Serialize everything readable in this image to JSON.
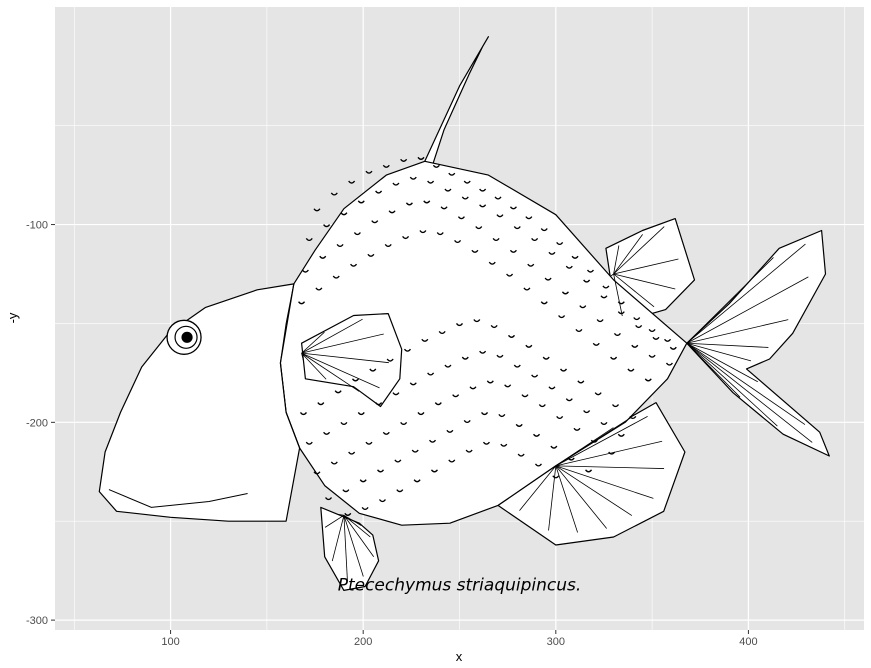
{
  "chart_data": {
    "type": "scatter",
    "title": "",
    "xlabel": "x",
    "ylabel": "-y",
    "xlim": [
      40,
      460
    ],
    "ylim": [
      -305,
      10
    ],
    "x_ticks": [
      100,
      200,
      300,
      400
    ],
    "y_ticks": [
      -100,
      -200,
      -300
    ],
    "x_tick_labels": [
      "100",
      "200",
      "300",
      "400"
    ],
    "y_tick_labels": [
      "-100",
      "-200",
      "-300"
    ],
    "grid": true,
    "panel_background": "#e5e5e5",
    "gridline_color": "#ffffff",
    "stroke_color": "#000000",
    "annotation": {
      "text": "Ptecechymus striaquipincus.",
      "x": 250,
      "y": -285
    },
    "series": [
      {
        "role": "body-outline",
        "x": [
          164,
          175,
          190,
          212,
          232,
          265,
          300,
          330,
          368,
          358,
          336,
          300,
          270,
          245,
          220,
          198,
          180,
          167,
          160,
          157,
          159,
          164
        ],
        "y": [
          -130,
          -113,
          -92,
          -75,
          -68,
          -75,
          -95,
          -128,
          -160,
          -178,
          -200,
          -222,
          -242,
          -251,
          -252,
          -246,
          -232,
          -213,
          -195,
          -170,
          -150,
          -130
        ]
      },
      {
        "role": "head-outline",
        "x": [
          164,
          145,
          118,
          99,
          85,
          74,
          66,
          63,
          72,
          100,
          130,
          160,
          167,
          160,
          157,
          164
        ],
        "y": [
          -130,
          -133,
          -142,
          -155,
          -172,
          -195,
          -215,
          -235,
          -245,
          -248,
          -250,
          -250,
          -213,
          -195,
          -170,
          -130
        ]
      },
      {
        "role": "dorsal-fin",
        "x": [
          236,
          242,
          255,
          262,
          265,
          250,
          232,
          236
        ],
        "y": [
          -70,
          -52,
          -24,
          -10,
          -5,
          -30,
          -68,
          -70
        ]
      },
      {
        "role": "upper-rear-fin",
        "x": [
          326,
          345,
          362,
          372,
          357,
          332,
          326
        ],
        "y": [
          -112,
          -103,
          -97,
          -128,
          -143,
          -150,
          -112
        ]
      },
      {
        "role": "caudal-fin",
        "x": [
          368,
          390,
          416,
          438,
          440,
          423,
          411,
          399,
          437,
          442,
          418,
          392,
          368
        ],
        "y": [
          -160,
          -140,
          -112,
          -103,
          -125,
          -155,
          -168,
          -173,
          -205,
          -217,
          -206,
          -185,
          -160
        ]
      },
      {
        "role": "ventral-fin",
        "x": [
          178,
          180,
          190,
          201,
          208,
          205,
          198,
          178
        ],
        "y": [
          -243,
          -268,
          -285,
          -283,
          -270,
          -257,
          -251,
          -243
        ]
      },
      {
        "role": "anal-fin",
        "x": [
          270,
          300,
          330,
          356,
          367,
          352,
          334,
          300,
          270
        ],
        "y": [
          -242,
          -262,
          -258,
          -245,
          -215,
          -190,
          -200,
          -222,
          -242
        ]
      },
      {
        "role": "pectoral-fin",
        "x": [
          168,
          195,
          213,
          220,
          219,
          209,
          195,
          170,
          168
        ],
        "y": [
          -160,
          -146,
          -145,
          -163,
          -178,
          -192,
          -182,
          -178,
          -160
        ]
      },
      {
        "role": "eye",
        "x": [
          107
        ],
        "y": [
          -157
        ]
      }
    ],
    "scale_marks": [
      [
        176,
        -92
      ],
      [
        185,
        -84
      ],
      [
        194,
        -78
      ],
      [
        203,
        -73
      ],
      [
        212,
        -70
      ],
      [
        221,
        -67
      ],
      [
        230,
        -66
      ],
      [
        238,
        -70
      ],
      [
        246,
        -74
      ],
      [
        254,
        -78
      ],
      [
        262,
        -82
      ],
      [
        270,
        -86
      ],
      [
        278,
        -91
      ],
      [
        286,
        -96
      ],
      [
        294,
        -102
      ],
      [
        302,
        -109
      ],
      [
        310,
        -116
      ],
      [
        318,
        -123
      ],
      [
        326,
        -131
      ],
      [
        334,
        -139
      ],
      [
        342,
        -147
      ],
      [
        350,
        -153
      ],
      [
        358,
        -158
      ],
      [
        172,
        -107
      ],
      [
        181,
        -100
      ],
      [
        190,
        -94
      ],
      [
        199,
        -88
      ],
      [
        208,
        -83
      ],
      [
        217,
        -79
      ],
      [
        226,
        -76
      ],
      [
        235,
        -78
      ],
      [
        244,
        -82
      ],
      [
        253,
        -86
      ],
      [
        262,
        -90
      ],
      [
        271,
        -95
      ],
      [
        280,
        -101
      ],
      [
        289,
        -107
      ],
      [
        298,
        -114
      ],
      [
        307,
        -121
      ],
      [
        316,
        -128
      ],
      [
        325,
        -136
      ],
      [
        334,
        -144
      ],
      [
        343,
        -151
      ],
      [
        352,
        -157
      ],
      [
        361,
        -162
      ],
      [
        170,
        -123
      ],
      [
        179,
        -116
      ],
      [
        188,
        -110
      ],
      [
        197,
        -104
      ],
      [
        206,
        -98
      ],
      [
        215,
        -93
      ],
      [
        224,
        -89
      ],
      [
        233,
        -88
      ],
      [
        242,
        -91
      ],
      [
        251,
        -96
      ],
      [
        260,
        -101
      ],
      [
        269,
        -107
      ],
      [
        278,
        -113
      ],
      [
        287,
        -120
      ],
      [
        296,
        -127
      ],
      [
        305,
        -134
      ],
      [
        314,
        -141
      ],
      [
        323,
        -148
      ],
      [
        332,
        -155
      ],
      [
        341,
        -161
      ],
      [
        350,
        -166
      ],
      [
        359,
        -170
      ],
      [
        168,
        -139
      ],
      [
        177,
        -132
      ],
      [
        186,
        -126
      ],
      [
        195,
        -120
      ],
      [
        204,
        -115
      ],
      [
        213,
        -110
      ],
      [
        222,
        -106
      ],
      [
        231,
        -103
      ],
      [
        240,
        -104
      ],
      [
        249,
        -108
      ],
      [
        258,
        -113
      ],
      [
        267,
        -119
      ],
      [
        276,
        -125
      ],
      [
        285,
        -132
      ],
      [
        294,
        -139
      ],
      [
        303,
        -146
      ],
      [
        312,
        -153
      ],
      [
        321,
        -160
      ],
      [
        330,
        -167
      ],
      [
        339,
        -173
      ],
      [
        348,
        -178
      ],
      [
        169,
        -195
      ],
      [
        178,
        -190
      ],
      [
        187,
        -184
      ],
      [
        196,
        -178
      ],
      [
        205,
        -173
      ],
      [
        214,
        -168
      ],
      [
        223,
        -163
      ],
      [
        232,
        -158
      ],
      [
        241,
        -154
      ],
      [
        250,
        -150
      ],
      [
        259,
        -148
      ],
      [
        268,
        -151
      ],
      [
        277,
        -156
      ],
      [
        286,
        -161
      ],
      [
        295,
        -167
      ],
      [
        304,
        -173
      ],
      [
        313,
        -179
      ],
      [
        322,
        -185
      ],
      [
        331,
        -191
      ],
      [
        340,
        -197
      ],
      [
        172,
        -210
      ],
      [
        181,
        -205
      ],
      [
        190,
        -200
      ],
      [
        199,
        -195
      ],
      [
        208,
        -190
      ],
      [
        217,
        -185
      ],
      [
        226,
        -180
      ],
      [
        235,
        -175
      ],
      [
        244,
        -171
      ],
      [
        253,
        -167
      ],
      [
        262,
        -164
      ],
      [
        271,
        -166
      ],
      [
        280,
        -171
      ],
      [
        289,
        -176
      ],
      [
        298,
        -182
      ],
      [
        307,
        -188
      ],
      [
        316,
        -194
      ],
      [
        325,
        -200
      ],
      [
        334,
        -206
      ],
      [
        176,
        -225
      ],
      [
        185,
        -220
      ],
      [
        194,
        -215
      ],
      [
        203,
        -210
      ],
      [
        212,
        -205
      ],
      [
        221,
        -200
      ],
      [
        230,
        -195
      ],
      [
        239,
        -190
      ],
      [
        248,
        -186
      ],
      [
        257,
        -182
      ],
      [
        266,
        -179
      ],
      [
        275,
        -181
      ],
      [
        284,
        -186
      ],
      [
        293,
        -191
      ],
      [
        302,
        -197
      ],
      [
        311,
        -203
      ],
      [
        320,
        -209
      ],
      [
        329,
        -215
      ],
      [
        182,
        -238
      ],
      [
        191,
        -234
      ],
      [
        200,
        -229
      ],
      [
        209,
        -224
      ],
      [
        218,
        -219
      ],
      [
        227,
        -214
      ],
      [
        236,
        -209
      ],
      [
        245,
        -204
      ],
      [
        254,
        -199
      ],
      [
        263,
        -195
      ],
      [
        272,
        -196
      ],
      [
        281,
        -201
      ],
      [
        290,
        -206
      ],
      [
        299,
        -212
      ],
      [
        308,
        -218
      ],
      [
        317,
        -224
      ],
      [
        192,
        -246
      ],
      [
        201,
        -243
      ],
      [
        210,
        -239
      ],
      [
        219,
        -234
      ],
      [
        228,
        -229
      ],
      [
        237,
        -224
      ],
      [
        246,
        -219
      ],
      [
        255,
        -214
      ],
      [
        264,
        -210
      ],
      [
        273,
        -211
      ],
      [
        282,
        -216
      ],
      [
        291,
        -221
      ],
      [
        300,
        -227
      ]
    ]
  }
}
